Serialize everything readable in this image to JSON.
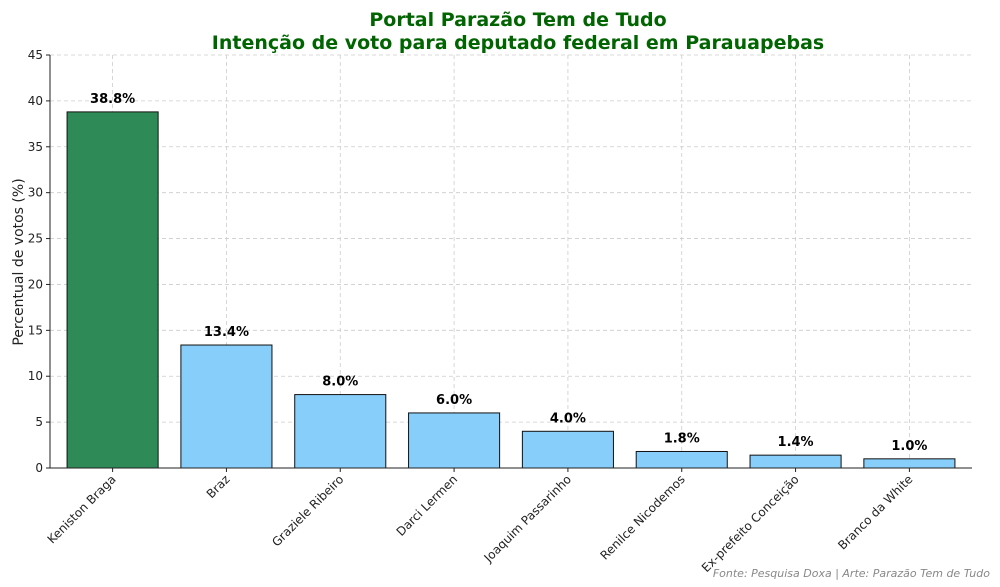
{
  "chart_data": {
    "type": "bar",
    "title": "Portal Parazão Tem de Tudo",
    "subtitle": "Intenção de voto para deputado federal em Parauapebas",
    "xlabel": "",
    "ylabel": "Percentual de votos (%)",
    "ylim": [
      0,
      45
    ],
    "yticks": [
      0,
      5,
      10,
      15,
      20,
      25,
      30,
      35,
      40,
      45
    ],
    "grid": true,
    "categories": [
      "Keniston Braga",
      "Braz",
      "Graziele Ribeiro",
      "Darci Lermen",
      "Joaquim Passarinho",
      "Renilce Nicodemos",
      "Ex-prefeito Conceição",
      "Branco da White"
    ],
    "values": [
      38.8,
      13.4,
      8.0,
      6.0,
      4.0,
      1.8,
      1.4,
      1.0
    ],
    "value_labels": [
      "38.8%",
      "13.4%",
      "8.0%",
      "6.0%",
      "4.0%",
      "1.8%",
      "1.4%",
      "1.0%"
    ],
    "bar_colors": [
      "#2e8b57",
      "#87cefa",
      "#87cefa",
      "#87cefa",
      "#87cefa",
      "#87cefa",
      "#87cefa",
      "#87cefa"
    ],
    "title_color": "#006400",
    "source": "Fonte: Pesquisa Doxa | Arte: Parazão Tem de Tudo"
  }
}
